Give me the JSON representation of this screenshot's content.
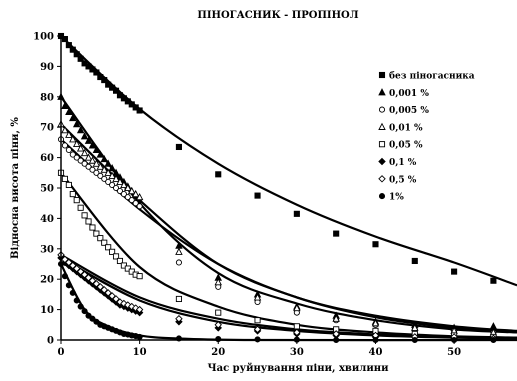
{
  "chart_data": {
    "type": "scatter",
    "title": "ПІНОГАСНИК   - ПРОПІНОЛ",
    "xlabel": "Час руйнування піни, хвилини",
    "ylabel": "Відносна висота піни, %",
    "xlim": [
      0,
      58
    ],
    "ylim": [
      0,
      100
    ],
    "x_ticks": [
      "0",
      "10",
      "20",
      "30",
      "40",
      "50"
    ],
    "y_ticks": [
      "0",
      "10",
      "20",
      "30",
      "40",
      "50",
      "60",
      "70",
      "80",
      "90",
      "100"
    ],
    "grid": false,
    "legend_position": "right",
    "colors": {
      "series": "#000000",
      "axis": "#000000",
      "background": "#ffffff"
    },
    "series": [
      {
        "name": "без піногасника",
        "marker": "square-filled",
        "points": [
          [
            0,
            100
          ],
          [
            0.5,
            99
          ],
          [
            1,
            97
          ],
          [
            1.5,
            95.5
          ],
          [
            2,
            94
          ],
          [
            2.5,
            92.5
          ],
          [
            3,
            91
          ],
          [
            3.5,
            90
          ],
          [
            4,
            89
          ],
          [
            4.5,
            88
          ],
          [
            5,
            86.5
          ],
          [
            5.5,
            85.5
          ],
          [
            6,
            84
          ],
          [
            6.5,
            83
          ],
          [
            7,
            82
          ],
          [
            7.5,
            80.5
          ],
          [
            8,
            79.5
          ],
          [
            8.5,
            78.5
          ],
          [
            9,
            77.5
          ],
          [
            9.5,
            76.5
          ],
          [
            10,
            75.5
          ],
          [
            15,
            63.5
          ],
          [
            20,
            54.5
          ],
          [
            25,
            47.5
          ],
          [
            30,
            41.5
          ],
          [
            35,
            35
          ],
          [
            40,
            31.5
          ],
          [
            45,
            26
          ],
          [
            50,
            22.5
          ],
          [
            55,
            19.5
          ]
        ],
        "fit": [
          [
            0,
            100
          ],
          [
            10,
            76
          ],
          [
            20,
            58
          ],
          [
            30,
            44.5
          ],
          [
            40,
            34
          ],
          [
            50,
            25.5
          ],
          [
            58,
            18
          ]
        ]
      },
      {
        "name": "0,001 %",
        "marker": "triangle-filled",
        "points": [
          [
            0,
            80
          ],
          [
            0.5,
            77
          ],
          [
            1,
            75
          ],
          [
            1.5,
            73
          ],
          [
            2,
            71
          ],
          [
            2.5,
            69
          ],
          [
            3,
            67
          ],
          [
            3.5,
            65.5
          ],
          [
            4,
            64
          ],
          [
            4.5,
            62.5
          ],
          [
            5,
            61
          ],
          [
            5.5,
            59.5
          ],
          [
            6,
            58
          ],
          [
            6.5,
            56.5
          ],
          [
            7,
            55
          ],
          [
            7.5,
            53.5
          ],
          [
            8,
            52
          ],
          [
            8.5,
            50.5
          ],
          [
            9,
            49
          ],
          [
            9.5,
            47.5
          ],
          [
            10,
            46
          ],
          [
            15,
            31
          ],
          [
            20,
            20.5
          ],
          [
            25,
            15
          ],
          [
            30,
            11
          ],
          [
            35,
            8
          ],
          [
            40,
            6
          ],
          [
            45,
            5
          ],
          [
            50,
            4
          ],
          [
            55,
            4.5
          ]
        ],
        "fit": [
          [
            0,
            80
          ],
          [
            10,
            45
          ],
          [
            20,
            22
          ],
          [
            30,
            12
          ],
          [
            40,
            6.5
          ],
          [
            50,
            3.5
          ],
          [
            58,
            2.5
          ]
        ]
      },
      {
        "name": "0,005 %",
        "marker": "circle-open",
        "points": [
          [
            0,
            66
          ],
          [
            0.5,
            64
          ],
          [
            1,
            62.5
          ],
          [
            1.5,
            61
          ],
          [
            2,
            60
          ],
          [
            2.5,
            59
          ],
          [
            3,
            58
          ],
          [
            3.5,
            57
          ],
          [
            4,
            56
          ],
          [
            4.5,
            55
          ],
          [
            5,
            54
          ],
          [
            5.5,
            53
          ],
          [
            6,
            52
          ],
          [
            6.5,
            51
          ],
          [
            7,
            50
          ],
          [
            7.5,
            49
          ],
          [
            8,
            48
          ],
          [
            8.5,
            47
          ],
          [
            9,
            46
          ],
          [
            9.5,
            45
          ],
          [
            10,
            44
          ],
          [
            15,
            25.5
          ],
          [
            20,
            17.5
          ],
          [
            25,
            12.5
          ],
          [
            30,
            9
          ],
          [
            35,
            6.5
          ],
          [
            40,
            5
          ],
          [
            45,
            3.5
          ],
          [
            50,
            3
          ],
          [
            55,
            2.5
          ]
        ],
        "fit": [
          [
            0,
            66
          ],
          [
            10,
            43
          ],
          [
            20,
            25
          ],
          [
            30,
            14
          ],
          [
            40,
            8
          ],
          [
            50,
            4.5
          ],
          [
            58,
            3
          ]
        ]
      },
      {
        "name": "0,01 %",
        "marker": "triangle-open",
        "points": [
          [
            0,
            71
          ],
          [
            0.5,
            69
          ],
          [
            1,
            67.5
          ],
          [
            1.5,
            66
          ],
          [
            2,
            64.5
          ],
          [
            2.5,
            63
          ],
          [
            3,
            61.5
          ],
          [
            3.5,
            60
          ],
          [
            4,
            59
          ],
          [
            4.5,
            58
          ],
          [
            5,
            57
          ],
          [
            5.5,
            56
          ],
          [
            6,
            55
          ],
          [
            6.5,
            54
          ],
          [
            7,
            53
          ],
          [
            7.5,
            52
          ],
          [
            8,
            51
          ],
          [
            8.5,
            50
          ],
          [
            9,
            49
          ],
          [
            9.5,
            48
          ],
          [
            10,
            47
          ],
          [
            15,
            29
          ],
          [
            20,
            19
          ],
          [
            25,
            14
          ],
          [
            30,
            10.5
          ],
          [
            35,
            7
          ],
          [
            40,
            5.5
          ],
          [
            45,
            4
          ],
          [
            50,
            3
          ],
          [
            55,
            2.5
          ]
        ],
        "fit": [
          [
            0,
            71
          ],
          [
            10,
            46
          ],
          [
            20,
            25
          ],
          [
            30,
            14
          ],
          [
            40,
            7.5
          ],
          [
            50,
            4
          ],
          [
            58,
            2.5
          ]
        ]
      },
      {
        "name": "0,05 %",
        "marker": "square-open",
        "points": [
          [
            0,
            55
          ],
          [
            0.5,
            53
          ],
          [
            1,
            51
          ],
          [
            1.5,
            48
          ],
          [
            2,
            46
          ],
          [
            2.5,
            43.5
          ],
          [
            3,
            41
          ],
          [
            3.5,
            39
          ],
          [
            4,
            37
          ],
          [
            4.5,
            35
          ],
          [
            5,
            33.5
          ],
          [
            5.5,
            32
          ],
          [
            6,
            30.5
          ],
          [
            6.5,
            29
          ],
          [
            7,
            27.5
          ],
          [
            7.5,
            26
          ],
          [
            8,
            24.5
          ],
          [
            8.5,
            23.5
          ],
          [
            9,
            22.5
          ],
          [
            9.5,
            21.5
          ],
          [
            10,
            21
          ],
          [
            15,
            13.5
          ],
          [
            20,
            9
          ],
          [
            25,
            6.5
          ],
          [
            30,
            4.5
          ],
          [
            35,
            3.5
          ],
          [
            40,
            3
          ],
          [
            45,
            2
          ],
          [
            50,
            1.5
          ],
          [
            55,
            1
          ]
        ],
        "fit": [
          [
            0,
            55
          ],
          [
            10,
            24
          ],
          [
            20,
            11
          ],
          [
            30,
            5
          ],
          [
            40,
            2.5
          ],
          [
            50,
            1.2
          ],
          [
            58,
            0.8
          ]
        ]
      },
      {
        "name": "0,1 %",
        "marker": "diamond-filled",
        "points": [
          [
            0,
            27
          ],
          [
            0.5,
            25.5
          ],
          [
            1,
            24.5
          ],
          [
            1.5,
            23.5
          ],
          [
            2,
            22.5
          ],
          [
            2.5,
            21.5
          ],
          [
            3,
            20.5
          ],
          [
            3.5,
            19.5
          ],
          [
            4,
            18.5
          ],
          [
            4.5,
            17.5
          ],
          [
            5,
            16.5
          ],
          [
            5.5,
            15.5
          ],
          [
            6,
            14.5
          ],
          [
            6.5,
            13.5
          ],
          [
            7,
            12.5
          ],
          [
            7.5,
            11.5
          ],
          [
            8,
            11
          ],
          [
            8.5,
            10.5
          ],
          [
            9,
            10
          ],
          [
            9.5,
            9.5
          ],
          [
            10,
            9
          ],
          [
            15,
            6
          ],
          [
            20,
            4
          ],
          [
            25,
            3
          ],
          [
            30,
            2
          ],
          [
            35,
            1.5
          ],
          [
            40,
            1
          ],
          [
            45,
            1
          ],
          [
            50,
            0.5
          ],
          [
            55,
            0.5
          ]
        ],
        "fit": [
          [
            0,
            27
          ],
          [
            10,
            13
          ],
          [
            20,
            6
          ],
          [
            30,
            3
          ],
          [
            40,
            1.5
          ],
          [
            50,
            0.8
          ],
          [
            58,
            0.5
          ]
        ]
      },
      {
        "name": "0,5 %",
        "marker": "diamond-open",
        "points": [
          [
            0,
            28
          ],
          [
            0.5,
            26.5
          ],
          [
            1,
            25.5
          ],
          [
            1.5,
            24.5
          ],
          [
            2,
            23.5
          ],
          [
            2.5,
            22.5
          ],
          [
            3,
            21.5
          ],
          [
            3.5,
            20.5
          ],
          [
            4,
            19.5
          ],
          [
            4.5,
            18.5
          ],
          [
            5,
            17.5
          ],
          [
            5.5,
            16.5
          ],
          [
            6,
            15.5
          ],
          [
            6.5,
            14.5
          ],
          [
            7,
            13.5
          ],
          [
            7.5,
            12.5
          ],
          [
            8,
            12
          ],
          [
            8.5,
            11.5
          ],
          [
            9,
            11
          ],
          [
            9.5,
            10.5
          ],
          [
            10,
            10
          ],
          [
            15,
            7
          ],
          [
            20,
            5
          ],
          [
            25,
            3.5
          ],
          [
            30,
            2.5
          ],
          [
            35,
            2
          ],
          [
            40,
            1.5
          ],
          [
            45,
            1
          ],
          [
            50,
            1
          ],
          [
            55,
            0.5
          ]
        ],
        "fit": [
          [
            0,
            28
          ],
          [
            10,
            14
          ],
          [
            20,
            7
          ],
          [
            30,
            3.5
          ],
          [
            40,
            1.8
          ],
          [
            50,
            0.9
          ],
          [
            58,
            0.5
          ]
        ]
      },
      {
        "name": "1%",
        "marker": "circle-filled",
        "points": [
          [
            0,
            25
          ],
          [
            0.5,
            21
          ],
          [
            1,
            18
          ],
          [
            1.5,
            15.5
          ],
          [
            2,
            13
          ],
          [
            2.5,
            11
          ],
          [
            3,
            9.5
          ],
          [
            3.5,
            8
          ],
          [
            4,
            7
          ],
          [
            4.5,
            6
          ],
          [
            5,
            5
          ],
          [
            5.5,
            4.5
          ],
          [
            6,
            4
          ],
          [
            6.5,
            3.5
          ],
          [
            7,
            3
          ],
          [
            7.5,
            2.5
          ],
          [
            8,
            2
          ],
          [
            8.5,
            1.8
          ],
          [
            9,
            1.5
          ],
          [
            9.5,
            1.3
          ],
          [
            10,
            1
          ],
          [
            15,
            0.5
          ],
          [
            20,
            0.3
          ],
          [
            25,
            0.2
          ],
          [
            30,
            0.1
          ],
          [
            35,
            0
          ],
          [
            40,
            0
          ],
          [
            45,
            0
          ],
          [
            50,
            0
          ],
          [
            55,
            0
          ]
        ],
        "fit": [
          [
            0,
            25
          ],
          [
            3,
            10
          ],
          [
            6,
            4.5
          ],
          [
            10,
            1.5
          ],
          [
            15,
            0.5
          ],
          [
            25,
            0
          ],
          [
            58,
            0
          ]
        ]
      }
    ]
  }
}
